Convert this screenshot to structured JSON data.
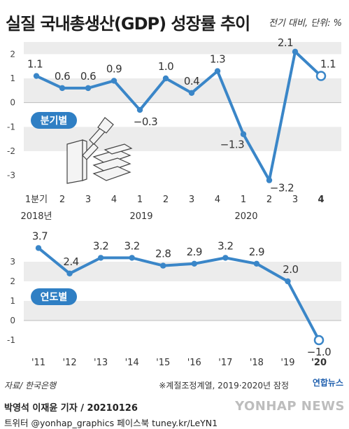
{
  "title": "실질 국내총생산(GDP) 성장률 추이",
  "unit": "전기 대비, 단위: %",
  "colors": {
    "line": "#3a86c8",
    "band": "#ececec",
    "label_fill": "#2f7fc4",
    "text": "#333333"
  },
  "chart_data": [
    {
      "type": "line",
      "name": "quarterly",
      "series_label": "분기별",
      "categories": [
        "1분기",
        "2",
        "3",
        "4",
        "1",
        "2",
        "3",
        "4",
        "1",
        "2",
        "3",
        "4"
      ],
      "year_labels": [
        "2018년",
        "2019",
        "2020"
      ],
      "values": [
        1.1,
        0.6,
        0.6,
        0.9,
        -0.3,
        1.0,
        0.4,
        1.3,
        -1.3,
        -3.2,
        2.1,
        1.1
      ],
      "value_labels": [
        "1.1",
        "0.6",
        "0.6",
        "0.9",
        "−0.3",
        "1.0",
        "0.4",
        "1.3",
        "−1.3",
        "−3.2",
        "2.1",
        "1.1"
      ],
      "yticks": [
        "2",
        "1",
        "0",
        "-1",
        "-2",
        "-3"
      ],
      "ylim": [
        -3.5,
        2.5
      ],
      "grid": "alternating bands",
      "last_point_hollow": true,
      "last_category_bold": true
    },
    {
      "type": "line",
      "name": "annual",
      "series_label": "연도별",
      "categories": [
        "'11",
        "'12",
        "'13",
        "'14",
        "'15",
        "'16",
        "'17",
        "'18",
        "'19",
        "'20"
      ],
      "values": [
        3.7,
        2.4,
        3.2,
        3.2,
        2.8,
        2.9,
        3.2,
        2.9,
        2.0,
        -1.0
      ],
      "value_labels": [
        "3.7",
        "2.4",
        "3.2",
        "3.2",
        "2.8",
        "2.9",
        "3.2",
        "2.9",
        "2.0",
        "−1.0"
      ],
      "yticks": [
        "3",
        "2",
        "1",
        "0",
        "-1"
      ],
      "ylim": [
        -1.5,
        3.5
      ],
      "grid": "alternating bands",
      "last_point_hollow": true,
      "last_category_bold": true
    }
  ],
  "footer": {
    "source": "자료/ 한국은행",
    "note": "※계절조정계열, 2019·2020년 잠정",
    "badge": "연합뉴스",
    "byline": "박영석 이재윤 기자 / 20210126",
    "social": "트위터 @yonhap_graphics  페이스북 tuney.kr/LeYN1",
    "agency": "YONHAP NEWS"
  }
}
